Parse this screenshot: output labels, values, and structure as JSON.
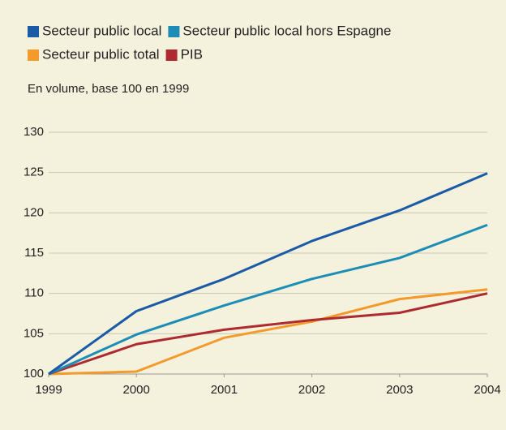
{
  "chart_data": {
    "type": "line",
    "subtitle": "En volume, base 100 en 1999",
    "x": [
      1999,
      2000,
      2001,
      2002,
      2003,
      2004
    ],
    "series": [
      {
        "name": "Secteur public local",
        "color": "#1a5aa6",
        "values": [
          100,
          107.8,
          111.8,
          116.5,
          120.3,
          124.9
        ]
      },
      {
        "name": "Secteur public local hors Espagne",
        "color": "#1b8db6",
        "values": [
          100,
          104.9,
          108.5,
          111.8,
          114.4,
          118.5
        ]
      },
      {
        "name": "Secteur public total",
        "color": "#f39a2b",
        "values": [
          100,
          100.3,
          104.5,
          106.5,
          109.3,
          110.5
        ]
      },
      {
        "name": "PIB",
        "color": "#ad2b2e",
        "values": [
          100,
          103.7,
          105.5,
          106.7,
          107.6,
          110.0
        ]
      }
    ],
    "xlim": [
      1999,
      2004
    ],
    "xticks": [
      1999,
      2000,
      2001,
      2002,
      2003,
      2004
    ],
    "ylim": [
      100,
      130
    ],
    "yticks": [
      100,
      105,
      110,
      115,
      120,
      125,
      130
    ],
    "grid": true,
    "legend": "top"
  }
}
